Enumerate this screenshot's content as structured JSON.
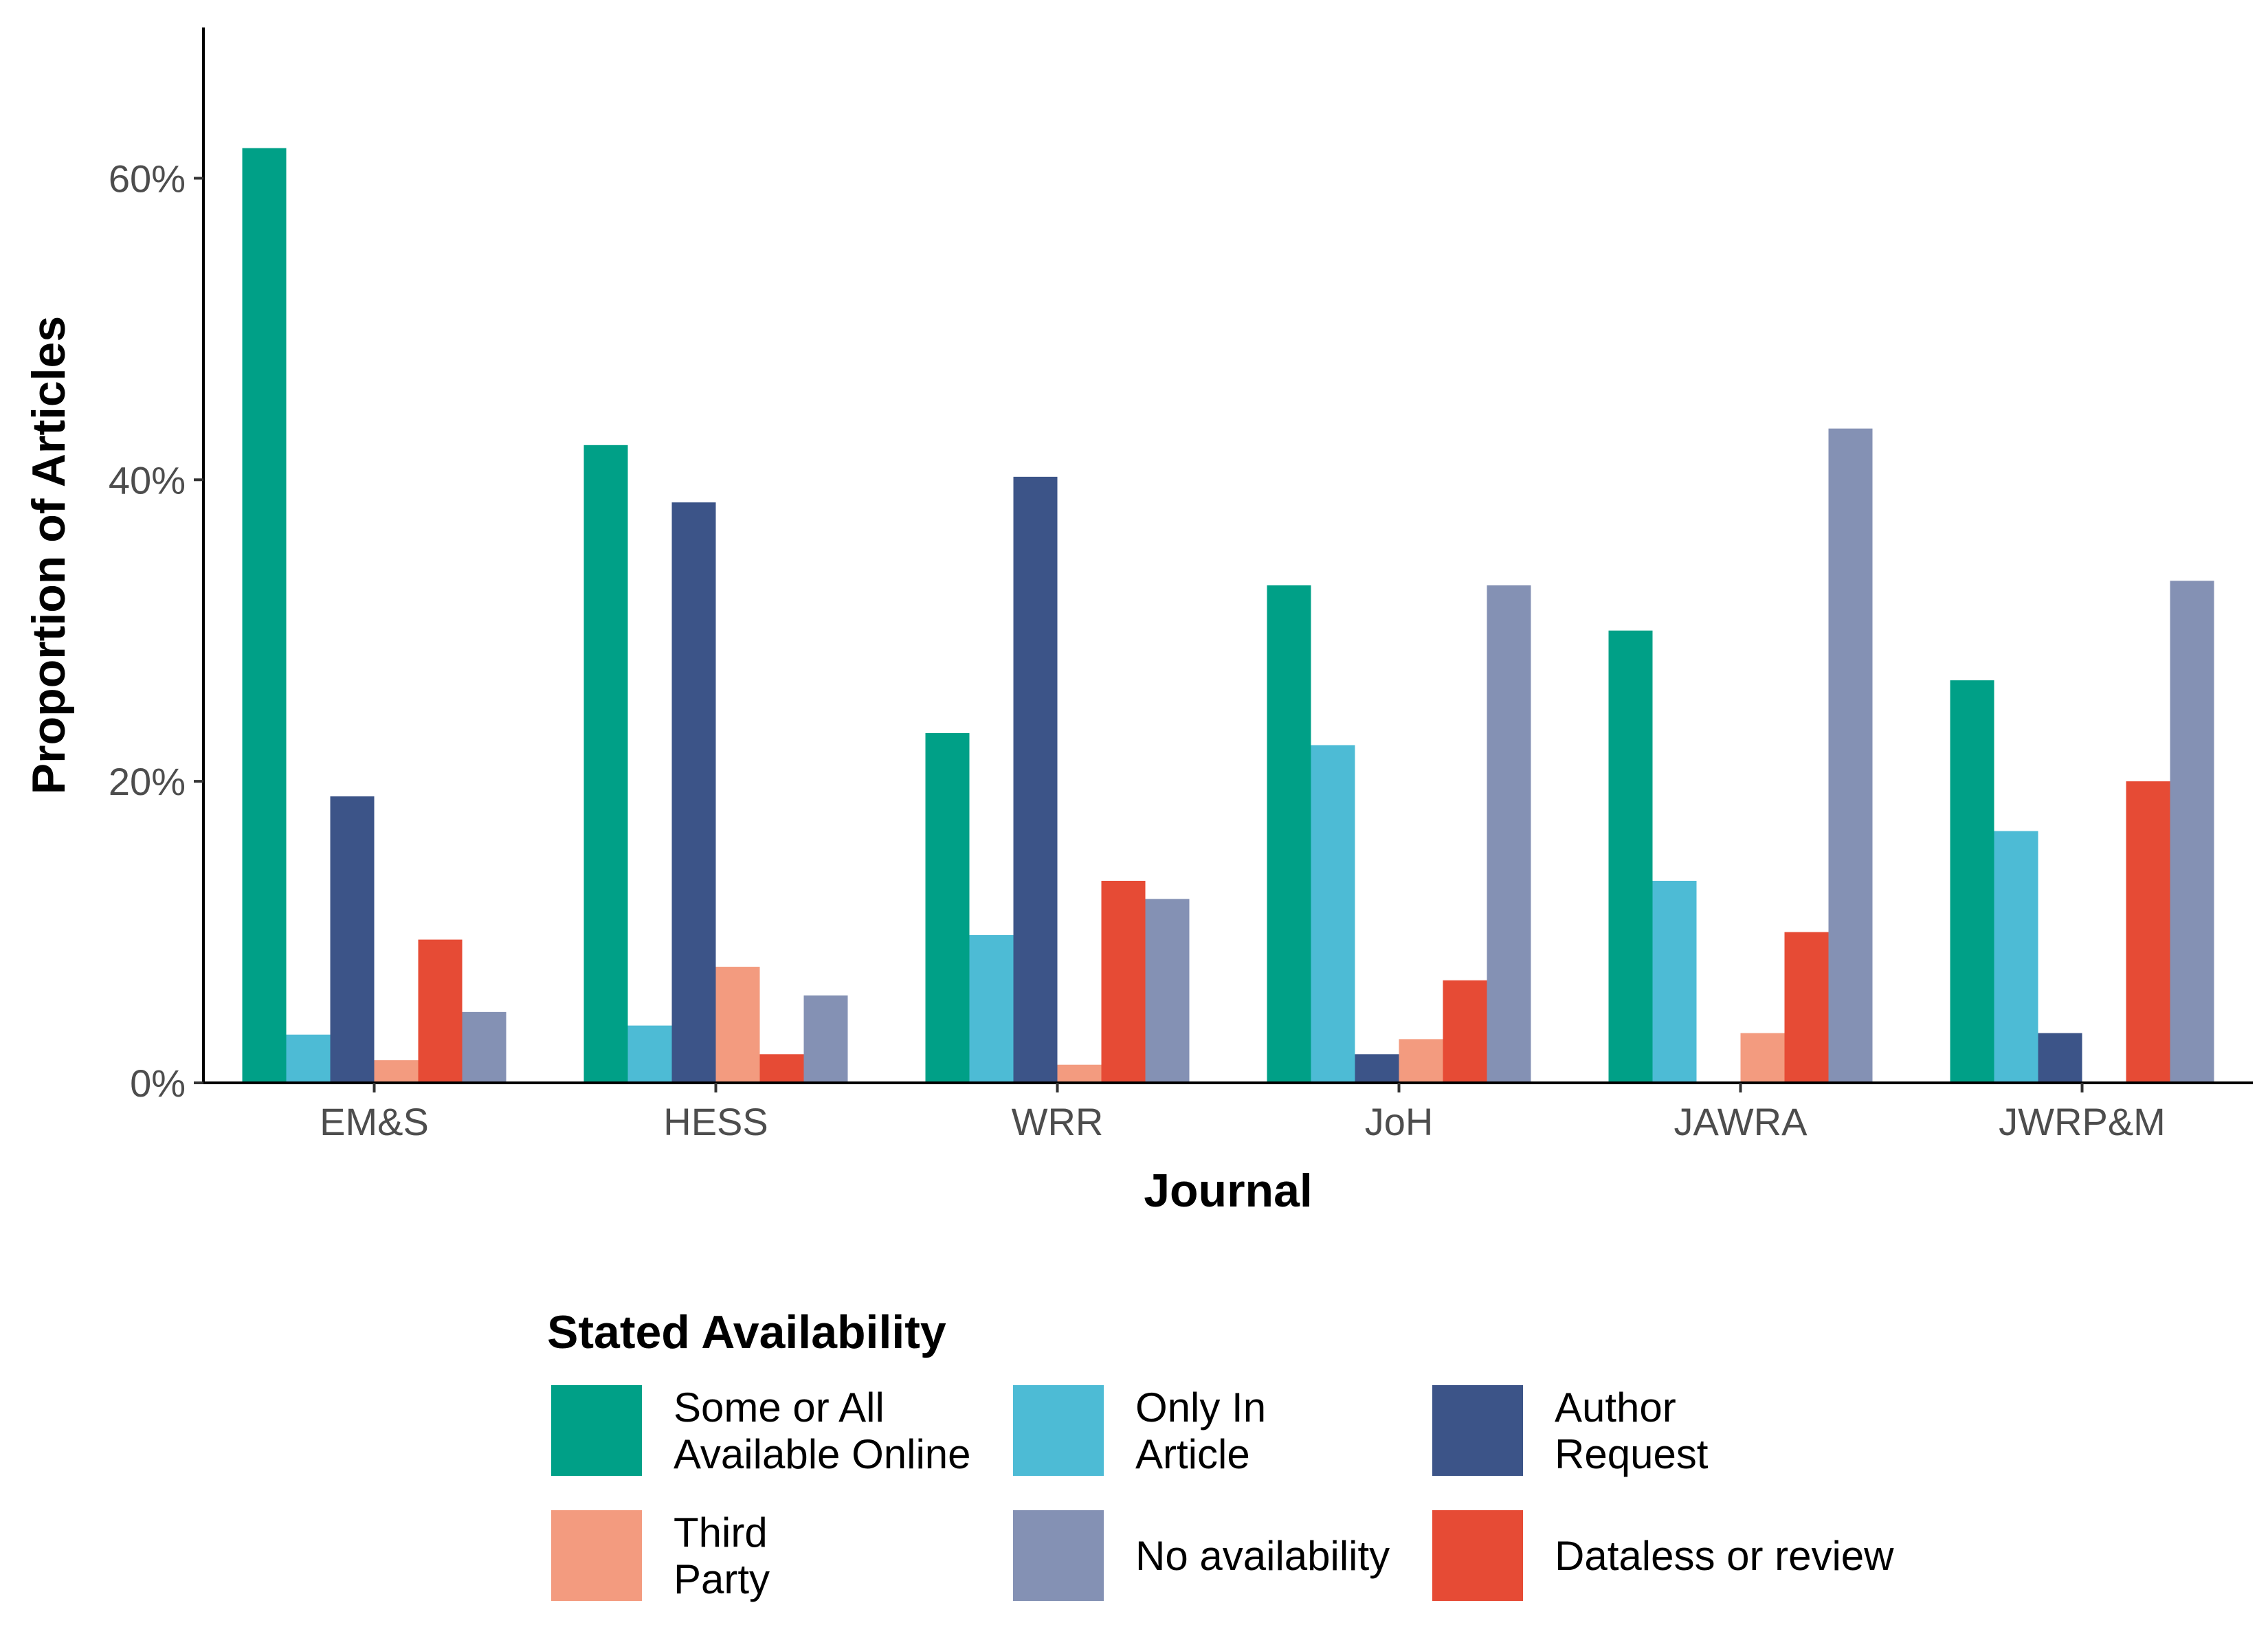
{
  "chart_data": {
    "type": "bar",
    "xlabel": "Journal",
    "ylabel": "Proportion of Articles",
    "ylim": [
      0,
      70
    ],
    "yticks": [
      "0%",
      "20%",
      "40%",
      "60%"
    ],
    "yticks_values": [
      0,
      20,
      40,
      60
    ],
    "grid": false,
    "legend_position": "bottom",
    "legend_title": "Stated Availability",
    "categories": [
      "EM&S",
      "HESS",
      "WRR",
      "JoH",
      "JAWRA",
      "JWRP&M"
    ],
    "series": [
      {
        "name": "Some or All Available Online",
        "legend_lines": [
          "Some or All",
          "Available Online"
        ],
        "color": "#00A087",
        "values": [
          62.0,
          42.3,
          23.2,
          33.0,
          30.0,
          26.7
        ]
      },
      {
        "name": "Only In Article",
        "legend_lines": [
          "Only In",
          "Article"
        ],
        "color": "#4DBBD5",
        "values": [
          3.2,
          3.8,
          9.8,
          22.4,
          13.4,
          16.7
        ]
      },
      {
        "name": "Author Request",
        "legend_lines": [
          "Author",
          "Request"
        ],
        "color": "#3C5488",
        "values": [
          19.0,
          38.5,
          40.2,
          1.9,
          0.0,
          3.3
        ]
      },
      {
        "name": "Third Party",
        "legend_lines": [
          "Third",
          "Party"
        ],
        "color": "#F39B7F",
        "values": [
          1.5,
          7.7,
          1.2,
          2.9,
          3.3,
          0.0
        ]
      },
      {
        "name": "Dataless or review",
        "legend_lines": [
          "Dataless or review"
        ],
        "color": "#E64B35",
        "values": [
          9.5,
          1.9,
          13.4,
          6.8,
          10.0,
          20.0
        ]
      },
      {
        "name": "No availability",
        "legend_lines": [
          "No availability"
        ],
        "color": "#8491B4",
        "values": [
          4.7,
          5.8,
          12.2,
          33.0,
          43.4,
          33.3
        ]
      }
    ],
    "legend_order": [
      0,
      1,
      2,
      3,
      5,
      4
    ]
  }
}
